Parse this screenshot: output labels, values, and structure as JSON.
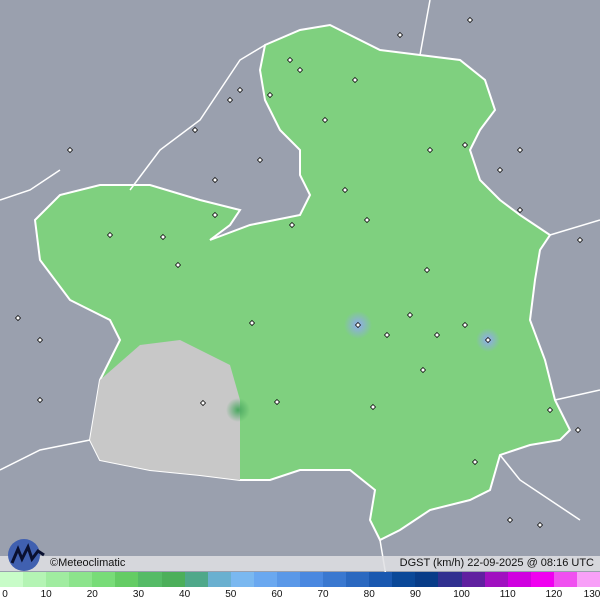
{
  "credit": "©Meteoclimatic",
  "caption": "DGST (km/h)  22-09-2025 @ 08:16 UTC",
  "legend": {
    "ticks": [
      "0",
      "10",
      "20",
      "30",
      "40",
      "50",
      "60",
      "70",
      "80",
      "90",
      "100",
      "110",
      "120",
      "130"
    ],
    "colors": [
      "#c8fcc8",
      "#b4f4b4",
      "#a0eca0",
      "#8ce48c",
      "#78dc78",
      "#64cc64",
      "#55bb66",
      "#4caf5a",
      "#4fa88a",
      "#6ab0d0",
      "#7ab8f0",
      "#6aa8f0",
      "#5a98e8",
      "#4a88e0",
      "#3a78d0",
      "#2a68c0",
      "#1a58b0",
      "#0a4898",
      "#083c88",
      "#303090",
      "#6020a0",
      "#a010c0",
      "#d000e0",
      "#f000f0",
      "#f050f0",
      "#f8a0f8"
    ]
  },
  "map": {
    "background_color": "#9aa0ae",
    "region_fill": "#7fd07f",
    "nodata_fill": "#c8c8c8",
    "high_gust_color": "#8fb0f0"
  }
}
